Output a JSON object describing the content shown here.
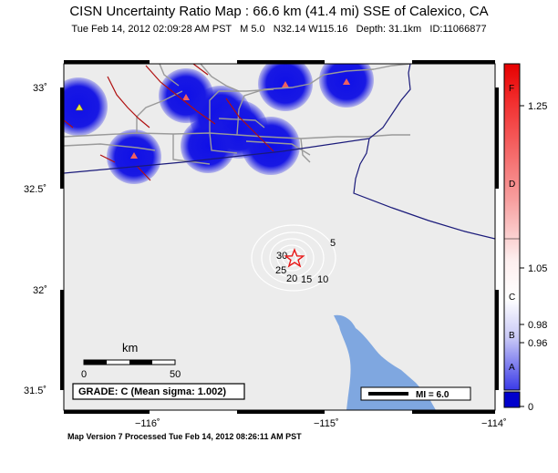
{
  "header": {
    "title": "CISN Uncertainty Ratio Map : 66.6 km (41.4 mi) SSE of Calexico, CA",
    "subtitle": "Tue Feb 14, 2012 02:09:28 AM PST   M 5.0   N32.14 W115.16   Depth: 31.1km   ID:11066877"
  },
  "footer": "Map Version 7 Processed Tue Feb 14, 2012 08:26:11 AM PST",
  "map": {
    "lat_ticks": [
      "33˚",
      "32.5˚",
      "32˚",
      "31.5˚"
    ],
    "lon_ticks": [
      "−116˚",
      "−115˚",
      "−114˚"
    ],
    "contour_labels": [
      "5",
      "10",
      "15",
      "20",
      "25",
      "30"
    ],
    "scalebar": {
      "label": "km",
      "start": "0",
      "end": "50"
    },
    "grade_text": "GRADE: C (Mean sigma: 1.002)",
    "mi_legend": "MI = 6.0",
    "colors": {
      "ocean": "#7fa7e0",
      "land": "#ececec",
      "station_blob": "#1313e0",
      "epicenter": "#e81818"
    }
  },
  "colorbar": {
    "letters": [
      "F",
      "D",
      "C",
      "B",
      "A"
    ],
    "values": [
      "1.25",
      "1.05",
      "0.98",
      "0.96",
      "0"
    ]
  }
}
